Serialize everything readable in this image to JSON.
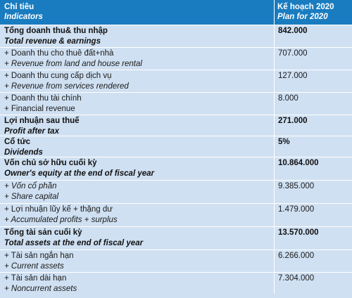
{
  "header": {
    "indicator_vi": "Chỉ tiêu",
    "indicator_en": "Indicators",
    "plan_vi": "Kế hoạch 2020",
    "plan_en": "Plan for 2020"
  },
  "rows": [
    {
      "vi": "Tổng doanh thu& thu nhập",
      "en": "Total revenue & earnings",
      "value": "842.000"
    },
    {
      "vi": "+ Doanh thu cho thuê đất+nhà",
      "en": "+ Revenue from land and house rental",
      "value": "707.000"
    },
    {
      "vi": "+ Doanh thu cung cấp dịch vụ",
      "en": "+ Revenue from services rendered",
      "value": "127.000"
    },
    {
      "vi": "+ Doanh thu tài chính",
      "en": "+ Financial revenue",
      "value": "8.000"
    },
    {
      "vi": "Lợi nhuận sau thuế",
      "en": "Profit after tax",
      "value": "271.000"
    },
    {
      "vi": "Cổ tức",
      "en": "Dividends",
      "value": "5%"
    },
    {
      "vi": "Vốn chủ sở hữu cuối kỳ",
      "en": "Owner's equity at the end of fiscal year",
      "value": "10.864.000"
    },
    {
      "vi": "+ Vốn cổ phần",
      "en": "+  Share capital",
      "value": "9.385.000"
    },
    {
      "vi": "+ Lợi nhuận lũy kế + thặng dư",
      "en": "+  Accumulated profits + surplus",
      "value": "1.479.000"
    },
    {
      "vi": "Tổng tài sản cuối kỳ",
      "en": "Total assets at the end of fiscal year",
      "value": "13.570.000"
    },
    {
      "vi": "+ Tài sản ngắn hạn",
      "en": "+ Current assets",
      "value": "6.266.000"
    },
    {
      "vi": "+ Tài sản dài hạn",
      "en": "+ Noncurrent assets",
      "value": "7.304.000"
    }
  ]
}
